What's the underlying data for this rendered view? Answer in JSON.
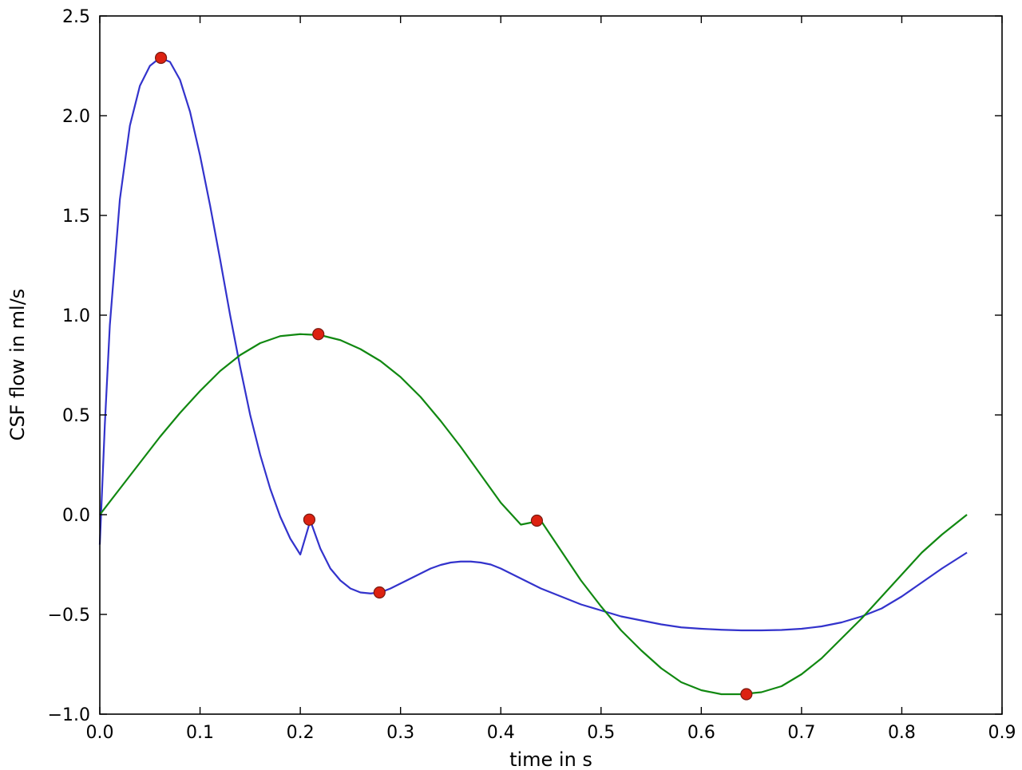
{
  "chart_data": {
    "type": "line",
    "title": "",
    "xlabel": "time in s",
    "ylabel": "CSF flow in ml/s",
    "xlim": [
      0.0,
      0.9
    ],
    "ylim": [
      -1.0,
      2.5
    ],
    "grid": false,
    "x_ticks": [
      0.0,
      0.1,
      0.2,
      0.3,
      0.4,
      0.5,
      0.6,
      0.7,
      0.8,
      0.9
    ],
    "x_tick_labels": [
      "0.0",
      "0.1",
      "0.2",
      "0.3",
      "0.4",
      "0.5",
      "0.6",
      "0.7",
      "0.8",
      "0.9"
    ],
    "y_ticks": [
      -1.0,
      -0.5,
      0.0,
      0.5,
      1.0,
      1.5,
      2.0,
      2.5
    ],
    "y_tick_labels": [
      "−1.0",
      "−0.5",
      "0.0",
      "0.5",
      "1.0",
      "1.5",
      "2.0",
      "2.5"
    ],
    "series": [
      {
        "color": "#3333cc",
        "x": [
          0.0,
          0.005,
          0.01,
          0.02,
          0.03,
          0.04,
          0.05,
          0.06,
          0.07,
          0.08,
          0.09,
          0.1,
          0.11,
          0.12,
          0.13,
          0.14,
          0.15,
          0.16,
          0.17,
          0.18,
          0.19,
          0.2,
          0.21,
          0.22,
          0.23,
          0.24,
          0.25,
          0.26,
          0.27,
          0.28,
          0.29,
          0.3,
          0.31,
          0.32,
          0.33,
          0.34,
          0.35,
          0.36,
          0.37,
          0.38,
          0.39,
          0.4,
          0.41,
          0.42,
          0.43,
          0.44,
          0.45,
          0.46,
          0.47,
          0.48,
          0.5,
          0.52,
          0.54,
          0.56,
          0.58,
          0.6,
          0.62,
          0.64,
          0.66,
          0.68,
          0.7,
          0.72,
          0.74,
          0.76,
          0.78,
          0.8,
          0.82,
          0.84,
          0.865
        ],
        "y": [
          -0.15,
          0.45,
          0.95,
          1.58,
          1.95,
          2.15,
          2.25,
          2.29,
          2.27,
          2.18,
          2.02,
          1.8,
          1.55,
          1.28,
          1.0,
          0.74,
          0.5,
          0.3,
          0.13,
          -0.01,
          -0.12,
          -0.2,
          -0.03,
          -0.17,
          -0.27,
          -0.33,
          -0.37,
          -0.39,
          -0.395,
          -0.39,
          -0.37,
          -0.345,
          -0.32,
          -0.295,
          -0.27,
          -0.252,
          -0.24,
          -0.235,
          -0.235,
          -0.24,
          -0.25,
          -0.27,
          -0.295,
          -0.32,
          -0.345,
          -0.37,
          -0.39,
          -0.41,
          -0.43,
          -0.45,
          -0.48,
          -0.51,
          -0.53,
          -0.55,
          -0.565,
          -0.572,
          -0.577,
          -0.58,
          -0.58,
          -0.578,
          -0.572,
          -0.56,
          -0.54,
          -0.51,
          -0.47,
          -0.41,
          -0.34,
          -0.27,
          -0.19
        ]
      },
      {
        "color": "#118811",
        "x": [
          0.0,
          0.02,
          0.04,
          0.06,
          0.08,
          0.1,
          0.12,
          0.14,
          0.16,
          0.18,
          0.2,
          0.22,
          0.24,
          0.26,
          0.28,
          0.3,
          0.32,
          0.34,
          0.36,
          0.38,
          0.4,
          0.42,
          0.44,
          0.46,
          0.48,
          0.5,
          0.52,
          0.54,
          0.56,
          0.58,
          0.6,
          0.62,
          0.64,
          0.66,
          0.68,
          0.7,
          0.72,
          0.74,
          0.76,
          0.78,
          0.8,
          0.82,
          0.84,
          0.865
        ],
        "y": [
          0.0,
          0.13,
          0.26,
          0.39,
          0.51,
          0.62,
          0.72,
          0.8,
          0.86,
          0.895,
          0.905,
          0.9,
          0.875,
          0.83,
          0.77,
          0.69,
          0.59,
          0.47,
          0.34,
          0.2,
          0.06,
          -0.05,
          -0.03,
          -0.18,
          -0.33,
          -0.46,
          -0.58,
          -0.68,
          -0.77,
          -0.84,
          -0.88,
          -0.9,
          -0.9,
          -0.89,
          -0.86,
          -0.8,
          -0.72,
          -0.62,
          -0.52,
          -0.41,
          -0.3,
          -0.19,
          -0.1,
          0.0
        ]
      }
    ],
    "markers": {
      "color": "#dd2211",
      "points": [
        {
          "x": 0.061,
          "y": 2.29
        },
        {
          "x": 0.209,
          "y": -0.025
        },
        {
          "x": 0.218,
          "y": 0.905
        },
        {
          "x": 0.279,
          "y": -0.39
        },
        {
          "x": 0.436,
          "y": -0.03
        },
        {
          "x": 0.645,
          "y": -0.9
        }
      ]
    }
  }
}
